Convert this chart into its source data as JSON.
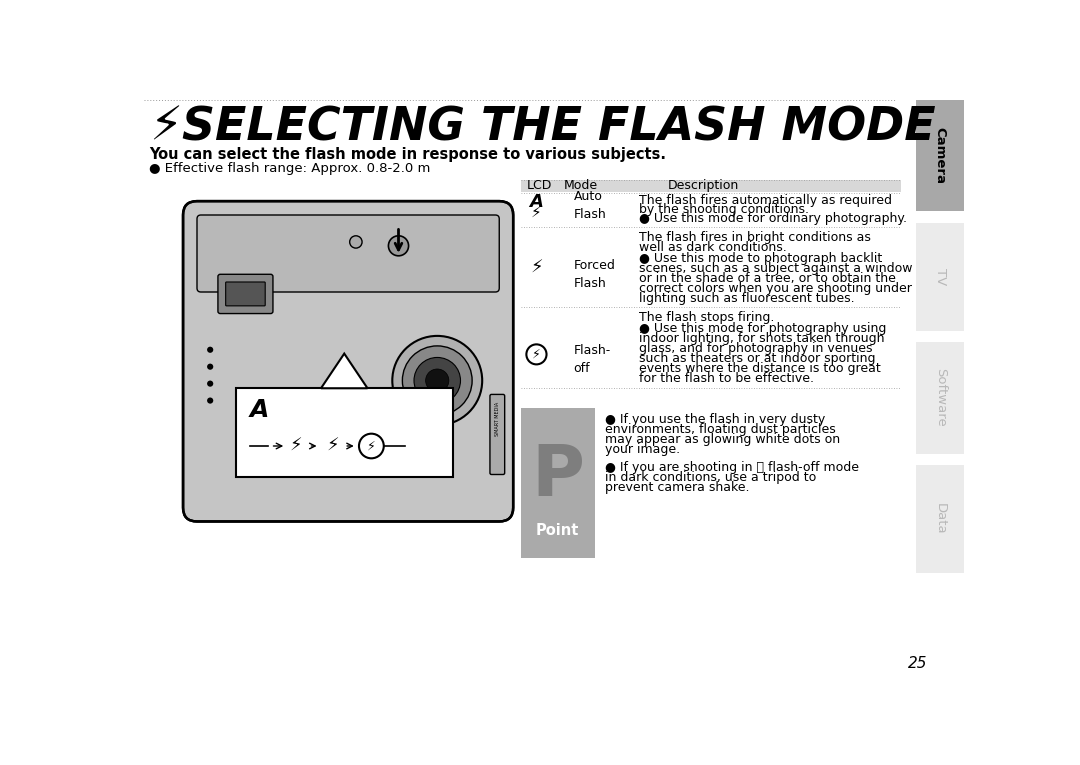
{
  "title_text": "SELECTING THE FLASH MODE",
  "subtitle": "You can select the flash mode in response to various subjects.",
  "bullet_note": "● Effective flash range: Approx. 0.8-2.0 m",
  "table_header": [
    "LCD",
    "Mode",
    "Description"
  ],
  "row1_lcd_A": "A",
  "row1_lcd_bolt": "⚡",
  "row1_mode": "Auto\nFlash",
  "row1_desc1": "The flash fires automatically as required",
  "row1_desc2": "by the shooting conditions.",
  "row1_desc3": "● Use this mode for ordinary photography.",
  "row2_lcd_bolt": "⚡",
  "row2_mode": "Forced\nFlash",
  "row2_desc1": "The flash fires in bright conditions as",
  "row2_desc2": "well as dark conditions.",
  "row2_desc3": "● Use this mode to photograph backlit",
  "row2_desc4": "scenes, such as a subject against a window",
  "row2_desc5": "or in the shade of a tree, or to obtain the",
  "row2_desc6": "correct colors when you are shooting under",
  "row2_desc7": "lighting such as fluorescent tubes.",
  "row3_lcd_bolt": "⚡",
  "row3_mode": "Flash-\noff",
  "row3_desc1": "The flash stops firing.",
  "row3_desc2": "● Use this mode for photography using",
  "row3_desc3": "indoor lighting, for shots taken through",
  "row3_desc4": "glass, and for photography in venues",
  "row3_desc5": "such as theaters or at indoor sporting",
  "row3_desc6": "events where the distance is too great",
  "row3_desc7": "for the flash to be effective.",
  "point_line1": "● If you use the flash in very dusty",
  "point_line2": "environments, floating dust particles",
  "point_line3": "may appear as glowing white dots on",
  "point_line4": "your image.",
  "point_line5": "● If you are shooting in ⓧ flash-off mode",
  "point_line6": "in dark conditions, use a tripod to",
  "point_line7": "prevent camera shake.",
  "sidebar_labels": [
    "Camera",
    "TV",
    "Software",
    "Data"
  ],
  "page_number": "25",
  "bg_color": "#ffffff",
  "sidebar_active_color": "#a8a8a8",
  "sidebar_inactive_color": "#ebebeb",
  "sidebar_text_active": "#000000",
  "sidebar_text_inactive": "#b8b8b8",
  "table_header_bg": "#d8d8d8",
  "point_box_color": "#aaaaaa",
  "dot_color": "#888888"
}
